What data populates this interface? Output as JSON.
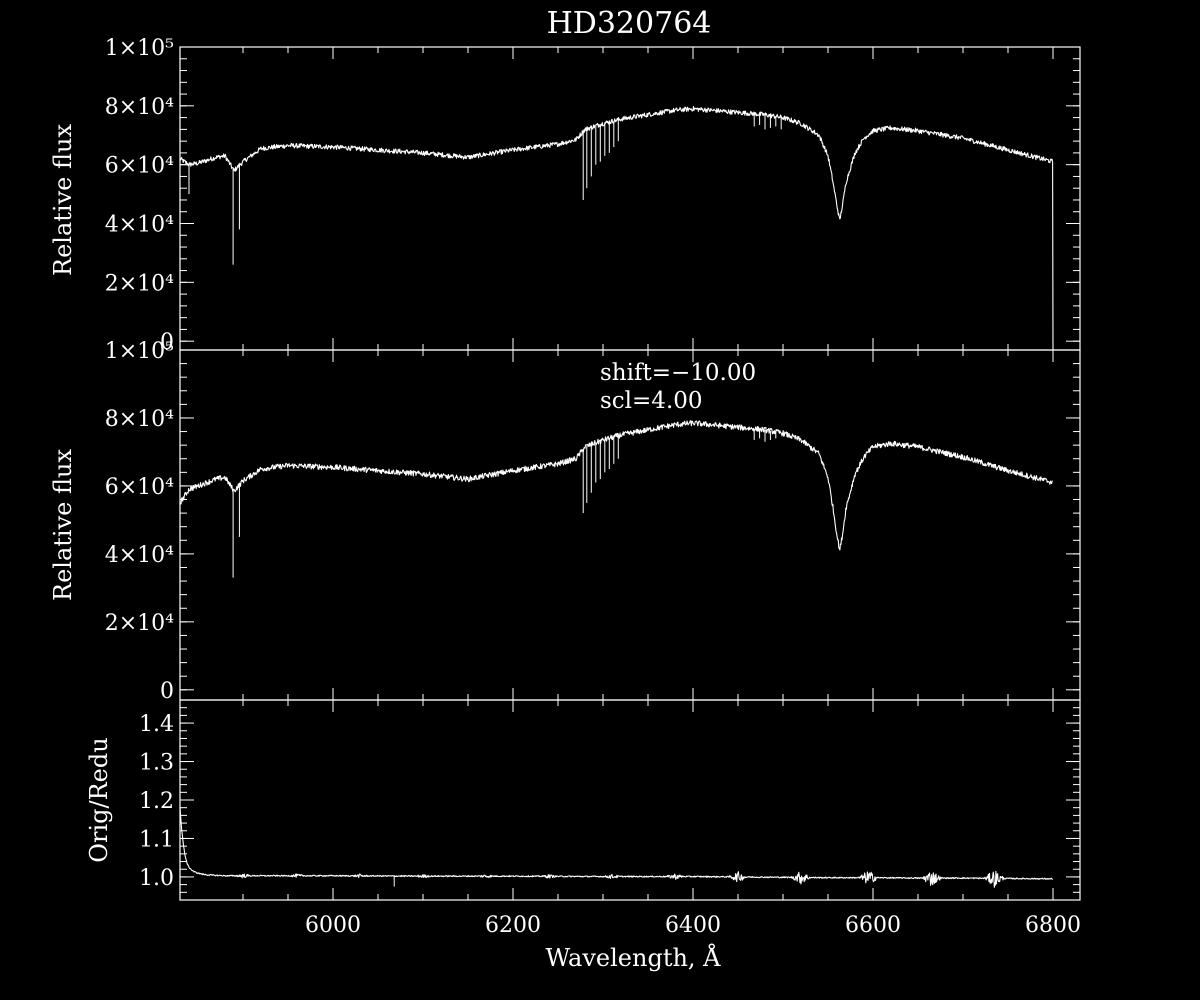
{
  "chart_data": [
    {
      "type": "line",
      "title": "HD320764",
      "ylabel": "Relative flux",
      "xlim": [
        5830,
        6830
      ],
      "ylim": [
        -3000,
        100000
      ],
      "ytick_labels": [
        "0",
        "2×10⁴",
        "4×10⁴",
        "6×10⁴",
        "8×10⁴",
        "1×10⁵"
      ],
      "yticks": [
        0,
        20000,
        40000,
        60000,
        80000,
        100000
      ],
      "series": [
        {
          "x": [
            5830,
            5840,
            5850,
            5860,
            5870,
            5880,
            5890,
            5900,
            5920,
            5950,
            6000,
            6050,
            6100,
            6150,
            6200,
            6250,
            6270,
            6280,
            6300,
            6320,
            6350,
            6380,
            6400,
            6420,
            6440,
            6460,
            6480,
            6500,
            6520,
            6540,
            6550,
            6555,
            6560,
            6563,
            6566,
            6570,
            6580,
            6590,
            6600,
            6620,
            6650,
            6700,
            6750,
            6800
          ],
          "y": [
            62000,
            60000,
            60500,
            61500,
            62500,
            63000,
            58000,
            61000,
            65500,
            66500,
            66000,
            65000,
            64000,
            62500,
            65000,
            67000,
            68500,
            72000,
            74000,
            75500,
            77000,
            78500,
            79000,
            78500,
            78000,
            77500,
            77000,
            76000,
            74000,
            70000,
            63000,
            55000,
            46000,
            41000,
            46000,
            54000,
            64000,
            69000,
            71500,
            72500,
            71500,
            69000,
            65000,
            61000
          ]
        }
      ],
      "absorption_lines": [
        {
          "x": 5840,
          "y": 50000
        },
        {
          "x": 5889,
          "y": 26000
        },
        {
          "x": 5896,
          "y": 38000
        },
        {
          "x": 6278,
          "y": 48000
        },
        {
          "x": 6282,
          "y": 52000
        },
        {
          "x": 6287,
          "y": 56000
        },
        {
          "x": 6292,
          "y": 60000
        },
        {
          "x": 6297,
          "y": 61000
        },
        {
          "x": 6302,
          "y": 63000
        },
        {
          "x": 6307,
          "y": 64000
        },
        {
          "x": 6312,
          "y": 66000
        },
        {
          "x": 6317,
          "y": 68000
        },
        {
          "x": 6468,
          "y": 73000
        },
        {
          "x": 6474,
          "y": 73500
        },
        {
          "x": 6480,
          "y": 72000
        },
        {
          "x": 6486,
          "y": 72500
        },
        {
          "x": 6492,
          "y": 73000
        },
        {
          "x": 6498,
          "y": 72000
        }
      ]
    },
    {
      "type": "line",
      "ylabel": "Relative flux",
      "annotations": [
        "shift=−10.00",
        "scl=4.00"
      ],
      "xlim": [
        5830,
        6830
      ],
      "ylim": [
        -3000,
        100000
      ],
      "ytick_labels": [
        "0",
        "2×10⁴",
        "4×10⁴",
        "6×10⁴",
        "8×10⁴",
        "1×10⁵"
      ],
      "yticks": [
        0,
        20000,
        40000,
        60000,
        80000,
        100000
      ],
      "series": [
        {
          "x": [
            5830,
            5840,
            5850,
            5860,
            5870,
            5880,
            5890,
            5900,
            5920,
            5950,
            6000,
            6050,
            6100,
            6150,
            6200,
            6250,
            6270,
            6280,
            6300,
            6320,
            6350,
            6380,
            6400,
            6420,
            6440,
            6460,
            6480,
            6500,
            6520,
            6540,
            6550,
            6555,
            6560,
            6563,
            6566,
            6570,
            6580,
            6590,
            6600,
            6620,
            6650,
            6700,
            6750,
            6800
          ],
          "y": [
            55000,
            59000,
            60000,
            61000,
            62000,
            62500,
            58500,
            61500,
            65000,
            66000,
            65500,
            64500,
            63500,
            62000,
            64500,
            66500,
            68000,
            71500,
            73500,
            75000,
            76500,
            78000,
            78500,
            78000,
            77500,
            77000,
            76500,
            75500,
            73500,
            69500,
            62500,
            54500,
            45500,
            41000,
            45500,
            53500,
            63500,
            68500,
            71500,
            72500,
            71500,
            68500,
            64500,
            61000
          ]
        }
      ],
      "absorption_lines": [
        {
          "x": 5889,
          "y": 33000
        },
        {
          "x": 5896,
          "y": 45000
        },
        {
          "x": 6278,
          "y": 52000
        },
        {
          "x": 6282,
          "y": 55000
        },
        {
          "x": 6287,
          "y": 58000
        },
        {
          "x": 6292,
          "y": 61000
        },
        {
          "x": 6297,
          "y": 62000
        },
        {
          "x": 6302,
          "y": 64000
        },
        {
          "x": 6307,
          "y": 65000
        },
        {
          "x": 6312,
          "y": 66500
        },
        {
          "x": 6317,
          "y": 68000
        },
        {
          "x": 6468,
          "y": 73500
        },
        {
          "x": 6474,
          "y": 74000
        },
        {
          "x": 6480,
          "y": 73000
        },
        {
          "x": 6486,
          "y": 73500
        },
        {
          "x": 6492,
          "y": 74000
        }
      ]
    },
    {
      "type": "line",
      "ylabel": "Orig/Redu",
      "xlabel": "Wavelength, Å",
      "xlim": [
        5830,
        6830
      ],
      "ylim": [
        0.94,
        1.46
      ],
      "ytick_labels": [
        "1.0",
        "1.1",
        "1.2",
        "1.3",
        "1.4"
      ],
      "yticks": [
        1.0,
        1.1,
        1.2,
        1.3,
        1.4
      ],
      "xtick_labels": [
        "6000",
        "6200",
        "6400",
        "6600",
        "6800"
      ],
      "xticks": [
        6000,
        6200,
        6400,
        6600,
        6800
      ],
      "series": [
        {
          "x": [
            5830,
            5832,
            5834,
            5836,
            5838,
            5840,
            5843,
            5846,
            5850,
            5855,
            5862,
            5870,
            5880,
            5900,
            6000,
            6100,
            6200,
            6300,
            6400,
            6450,
            6500,
            6550,
            6600,
            6650,
            6700,
            6750,
            6800
          ],
          "y": [
            1.18,
            1.12,
            1.08,
            1.05,
            1.035,
            1.025,
            1.018,
            1.013,
            1.01,
            1.007,
            1.005,
            1.004,
            1.003,
            1.003,
            1.003,
            1.002,
            1.002,
            1.001,
            1.001,
            1.0,
            0.999,
            0.998,
            0.998,
            0.997,
            0.997,
            0.996,
            0.995
          ]
        }
      ],
      "noise_regions": [
        {
          "x": 5900,
          "amp": 0.006
        },
        {
          "x": 5960,
          "amp": 0.005
        },
        {
          "x": 6030,
          "amp": 0.005
        },
        {
          "x": 6100,
          "amp": 0.005
        },
        {
          "x": 6170,
          "amp": 0.005
        },
        {
          "x": 6240,
          "amp": 0.005
        },
        {
          "x": 6310,
          "amp": 0.006
        },
        {
          "x": 6380,
          "amp": 0.008
        },
        {
          "x": 6450,
          "amp": 0.014
        },
        {
          "x": 6520,
          "amp": 0.018
        },
        {
          "x": 6595,
          "amp": 0.02
        },
        {
          "x": 6665,
          "amp": 0.022
        },
        {
          "x": 6735,
          "amp": 0.024
        }
      ],
      "spikes": [
        {
          "x": 6068,
          "y": 0.975
        }
      ]
    }
  ]
}
